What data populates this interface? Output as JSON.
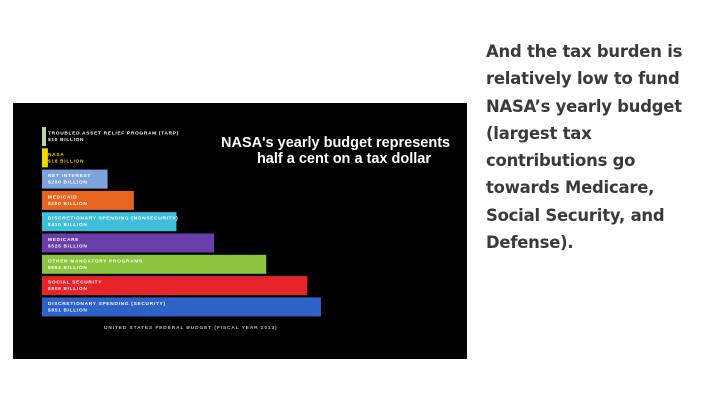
{
  "slide": {
    "caption_lines": [
      "And the tax burden is",
      "relatively low to fund",
      "NASA’s  yearly budget",
      "(largest tax",
      "contributions go",
      "towards Medicare,",
      "Social Security, and",
      "Defense)."
    ]
  },
  "chart_data": {
    "type": "bar",
    "orientation": "horizontal",
    "title_lines": [
      "NASA's yearly budget represents",
      "half a cent on a tax dollar"
    ],
    "footnote": "UNITED STATES FEDERAL BUDGET (FISCAL YEAR 2013)",
    "categories": [
      "TROUBLED ASSET RELIEF PROGRAM (TARP)",
      "NASA",
      "NET INTEREST",
      "MEDICAID",
      "DISCRETIONARY SPENDING (NONSECURITY)",
      "MEDICARE",
      "OTHER MANDATORY PROGRAMS",
      "SOCIAL SECURITY",
      "DISCRETIONARY SPENDING (SECURITY)"
    ],
    "value_labels": [
      "$10 BILLION",
      "$18 BILLION",
      "$200 BILLION",
      "$280 BILLION",
      "$410 BILLION",
      "$525 BILLION",
      "$684 BILLION",
      "$809 BILLION",
      "$851 BILLION"
    ],
    "values": [
      10,
      18,
      200,
      280,
      410,
      525,
      684,
      809,
      851
    ],
    "xlim": [
      0,
      860
    ],
    "colors": [
      "#b9d3a8",
      "#f2d700",
      "#7da3de",
      "#e8651f",
      "#3fbfd9",
      "#6a3ea8",
      "#8bc43f",
      "#e8242b",
      "#2f62c9"
    ],
    "text_colors": [
      "#ffffff",
      "#f2d700",
      "#ffffff",
      "#ffffff",
      "#ffffff",
      "#ffffff",
      "#ffffff",
      "#ffffff",
      "#ffffff"
    ],
    "grid": false,
    "legend": "none"
  }
}
